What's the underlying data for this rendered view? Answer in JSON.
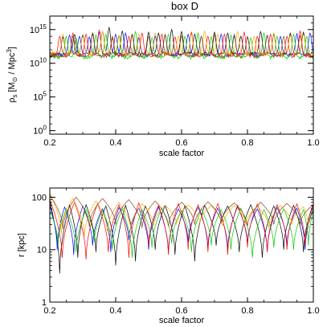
{
  "figure": {
    "title": "box D"
  },
  "colors": {
    "series": [
      "#000000",
      "#0000ff",
      "#ff0000",
      "#00cc00",
      "#ffaa00",
      "#8b4513"
    ]
  },
  "chart_data": [
    {
      "type": "line",
      "title": "box D",
      "xlabel": "scale factor",
      "ylabel_main": "ρ",
      "ylabel_sub": "s",
      "ylabel_rest": " [M",
      "ylabel_sun": "⊙",
      "ylabel_unit": " / Mpc",
      "ylabel_exp": "3",
      "ylabel_close": "]",
      "xlim": [
        0.2,
        1.0
      ],
      "ylim": [
        0.3,
        1e+17
      ],
      "yscale": "log",
      "xticks": [
        {
          "v": 0.2,
          "label": "0.2"
        },
        {
          "v": 0.4,
          "label": "0.4"
        },
        {
          "v": 0.6,
          "label": "0.6"
        },
        {
          "v": 0.8,
          "label": "0.8"
        },
        {
          "v": 1.0,
          "label": "1.0"
        }
      ],
      "yticks": [
        {
          "v": 1,
          "base": "10",
          "exp": "0"
        },
        {
          "v": 100000,
          "base": "10",
          "exp": "5"
        },
        {
          "v": 10000000000,
          "base": "10",
          "exp": "10"
        },
        {
          "v": 1000000000000000,
          "base": "10",
          "exp": "15"
        }
      ],
      "grid": false,
      "series": [
        {
          "color": "#000000",
          "base": 250000000000.0,
          "spikes": [
            [
              0.24,
              80000000000000.0
            ],
            [
              0.275,
              200000000000000.0
            ],
            [
              0.3,
              150000000000000.0
            ],
            [
              0.33,
              300000000000000.0
            ],
            [
              0.36,
              500000000000000.0
            ],
            [
              0.38,
              2000000000000000.0
            ],
            [
              0.42,
              600000000000000.0
            ],
            [
              0.45,
              200000000000000.0
            ],
            [
              0.5,
              400000000000000.0
            ],
            [
              0.53,
              300000000000000.0
            ],
            [
              0.57,
              1000000000000000.0
            ],
            [
              0.6,
              500000000000000.0
            ],
            [
              0.64,
              200000000000000.0
            ],
            [
              0.7,
              400000000000000.0
            ],
            [
              0.74,
              300000000000000.0
            ],
            [
              0.78,
              100000000000000.0
            ],
            [
              0.84,
              500000000000000.0
            ],
            [
              0.88,
              200000000000000.0
            ],
            [
              0.93,
              300000000000000.0
            ],
            [
              0.97,
              400000000000000.0
            ]
          ]
        },
        {
          "color": "#0000ff",
          "base": 200000000000.0,
          "spikes": [
            [
              0.26,
              150000000000000.0
            ],
            [
              0.29,
              100000000000000.0
            ],
            [
              0.32,
              80000000000000.0
            ],
            [
              0.35,
              400000000000000.0
            ],
            [
              0.4,
              200000000000000.0
            ],
            [
              0.43,
              300000000000000.0
            ],
            [
              0.47,
              60000000000000.0
            ],
            [
              0.52,
              100000000000000.0
            ],
            [
              0.55,
              150000000000000.0
            ],
            [
              0.62,
              200000000000000.0
            ],
            [
              0.66,
              100000000000000.0
            ],
            [
              0.72,
              200000000000000.0
            ],
            [
              0.76,
              100000000000000.0
            ],
            [
              0.8,
              70000000000000.0
            ],
            [
              0.86,
              120000000000000.0
            ],
            [
              0.9,
              100000000000000.0
            ],
            [
              0.95,
              250000000000000.0
            ],
            [
              0.99,
              300000000000000.0
            ]
          ]
        },
        {
          "color": "#ff0000",
          "base": 150000000000.0,
          "spikes": [
            [
              0.23,
              100000000000000.0
            ],
            [
              0.27,
              300000000000000.0
            ],
            [
              0.31,
              200000000000000.0
            ],
            [
              0.35,
              800000000000000.0
            ],
            [
              0.39,
              50000000000000.0
            ],
            [
              0.44,
              100000000000000.0
            ],
            [
              0.48,
              300000000000000.0
            ],
            [
              0.54,
              200000000000000.0
            ],
            [
              0.58,
              80000000000000.0
            ],
            [
              0.63,
              400000000000000.0
            ],
            [
              0.68,
              100000000000000.0
            ],
            [
              0.73,
              200000000000000.0
            ],
            [
              0.79,
              400000000000000.0
            ],
            [
              0.83,
              100000000000000.0
            ],
            [
              0.87,
              200000000000000.0
            ],
            [
              0.92,
              100000000000000.0
            ],
            [
              0.96,
              600000000000000.0
            ]
          ]
        },
        {
          "color": "#00cc00",
          "base": 80000000000.0,
          "spikes": [
            [
              0.25,
              100000000000000.0
            ],
            [
              0.28,
              50000000000000.0
            ],
            [
              0.34,
              150000000000000.0
            ],
            [
              0.37,
              200000000000000.0
            ],
            [
              0.41,
              100000000000000.0
            ],
            [
              0.46,
              500000000000000.0
            ],
            [
              0.51,
              60000000000000.0
            ],
            [
              0.56,
              200000000000000.0
            ],
            [
              0.61,
              100000000000000.0
            ],
            [
              0.65,
              300000000000000.0
            ],
            [
              0.69,
              80000000000000.0
            ],
            [
              0.75,
              150000000000000.0
            ],
            [
              0.81,
              60000000000000.0
            ],
            [
              0.85,
              300000000000000.0
            ],
            [
              0.89,
              100000000000000.0
            ],
            [
              0.94,
              200000000000000.0
            ],
            [
              0.98,
              100000000000000.0
            ]
          ]
        },
        {
          "color": "#ffaa00",
          "base": 300000000000.0,
          "spikes": [
            [
              0.24,
              200000000000000.0
            ],
            [
              0.3,
              100000000000000.0
            ],
            [
              0.36,
              500000000000000.0
            ],
            [
              0.41,
              150000000000000.0
            ],
            [
              0.47,
              200000000000000.0
            ],
            [
              0.52,
              300000000000000.0
            ],
            [
              0.59,
              100000000000000.0
            ],
            [
              0.63,
              200000000000000.0
            ],
            [
              0.67,
              600000000000000.0
            ],
            [
              0.71,
              200000000000000.0
            ],
            [
              0.77,
              500000000000000.0
            ],
            [
              0.82,
              100000000000000.0
            ],
            [
              0.88,
              300000000000000.0
            ],
            [
              0.93,
              150000000000000.0
            ],
            [
              0.97,
              200000000000000.0
            ]
          ]
        },
        {
          "color": "#8b4513",
          "base": 120000000000.0,
          "spikes": [
            [
              0.27,
              100000000000000.0
            ],
            [
              0.33,
              200000000000000.0
            ],
            [
              0.39,
              100000000000000.0
            ],
            [
              0.45,
              150000000000000.0
            ],
            [
              0.5,
              100000000000000.0
            ],
            [
              0.55,
              200000000000000.0
            ],
            [
              0.6,
              120000000000000.0
            ],
            [
              0.66,
              100000000000000.0
            ],
            [
              0.7,
              150000000000000.0
            ],
            [
              0.76,
              200000000000000.0
            ],
            [
              0.8,
              100000000000000.0
            ],
            [
              0.86,
              150000000000000.0
            ],
            [
              0.91,
              100000000000000.0
            ],
            [
              0.96,
              120000000000000.0
            ]
          ]
        }
      ]
    },
    {
      "type": "line",
      "xlabel": "scale factor",
      "ylabel": "r [kpc]",
      "xlim": [
        0.2,
        1.0
      ],
      "ylim": [
        1,
        150
      ],
      "yscale": "log",
      "xticks": [
        {
          "v": 0.2,
          "label": "0.2"
        },
        {
          "v": 0.4,
          "label": "0.4"
        },
        {
          "v": 0.6,
          "label": "0.6"
        },
        {
          "v": 0.8,
          "label": "0.8"
        },
        {
          "v": 1.0,
          "label": "1.0"
        }
      ],
      "yticks": [
        {
          "v": 1,
          "label": "1"
        },
        {
          "v": 10,
          "label": "10"
        },
        {
          "v": 100,
          "label": "100"
        }
      ],
      "grid": false,
      "series": [
        {
          "color": "#000000",
          "peaks": [
            [
              0.2,
              85
            ],
            [
              0.26,
              70
            ],
            [
              0.31,
              72
            ],
            [
              0.37,
              68
            ],
            [
              0.43,
              70
            ],
            [
              0.49,
              68
            ],
            [
              0.55,
              70
            ],
            [
              0.61,
              68
            ],
            [
              0.67,
              70
            ],
            [
              0.74,
              68
            ],
            [
              0.81,
              72
            ],
            [
              0.88,
              68
            ],
            [
              0.94,
              70
            ],
            [
              1.0,
              75
            ]
          ],
          "mins": [
            3.5,
            7,
            9,
            5,
            6,
            10,
            8,
            6,
            12,
            9,
            7,
            10,
            9
          ]
        },
        {
          "color": "#0000ff",
          "peaks": [
            [
              0.2,
              70
            ],
            [
              0.245,
              65
            ],
            [
              0.3,
              68
            ],
            [
              0.36,
              60
            ],
            [
              0.41,
              64
            ],
            [
              0.47,
              62
            ],
            [
              0.53,
              65
            ],
            [
              0.59,
              60
            ],
            [
              0.65,
              64
            ],
            [
              0.71,
              62
            ],
            [
              0.77,
              66
            ],
            [
              0.83,
              60
            ],
            [
              0.89,
              64
            ],
            [
              0.95,
              62
            ],
            [
              1.0,
              60
            ]
          ],
          "mins": [
            10,
            8,
            12,
            9,
            15,
            10,
            9,
            14,
            11,
            10,
            13,
            9,
            12,
            10
          ]
        },
        {
          "color": "#ff0000",
          "peaks": [
            [
              0.2,
              90
            ],
            [
              0.275,
              80
            ],
            [
              0.345,
              75
            ],
            [
              0.41,
              72
            ],
            [
              0.47,
              78
            ],
            [
              0.53,
              70
            ],
            [
              0.59,
              75
            ],
            [
              0.65,
              72
            ],
            [
              0.71,
              76
            ],
            [
              0.77,
              70
            ],
            [
              0.83,
              74
            ],
            [
              0.89,
              72
            ],
            [
              0.95,
              75
            ],
            [
              1.0,
              70
            ]
          ],
          "mins": [
            7,
            6.5,
            9,
            7,
            12,
            8,
            10,
            9,
            8,
            11,
            9,
            10,
            12
          ]
        },
        {
          "color": "#00cc00",
          "peaks": [
            [
              0.2,
              55
            ],
            [
              0.25,
              60
            ],
            [
              0.31,
              58
            ],
            [
              0.36,
              55
            ],
            [
              0.42,
              60
            ],
            [
              0.48,
              58
            ],
            [
              0.54,
              62
            ],
            [
              0.6,
              56
            ],
            [
              0.66,
              60
            ],
            [
              0.72,
              58
            ],
            [
              0.78,
              62
            ],
            [
              0.85,
              58
            ],
            [
              0.91,
              60
            ],
            [
              0.97,
              58
            ],
            [
              1.0,
              55
            ]
          ],
          "mins": [
            12,
            9,
            14,
            10,
            7,
            11,
            13,
            9,
            12,
            10,
            7,
            11,
            10,
            12
          ]
        },
        {
          "color": "#ffaa00",
          "peaks": [
            [
              0.2,
              120
            ],
            [
              0.27,
              95
            ],
            [
              0.34,
              85
            ],
            [
              0.41,
              80
            ],
            [
              0.48,
              75
            ],
            [
              0.55,
              70
            ],
            [
              0.62,
              72
            ],
            [
              0.69,
              68
            ],
            [
              0.76,
              70
            ],
            [
              0.83,
              66
            ],
            [
              0.9,
              70
            ],
            [
              0.97,
              66
            ],
            [
              1.0,
              64
            ]
          ],
          "mins": [
            20,
            18,
            22,
            25,
            28,
            30,
            32,
            28,
            30,
            26,
            30,
            28
          ]
        },
        {
          "color": "#8b4513",
          "peaks": [
            [
              0.2,
              110
            ],
            [
              0.28,
              100
            ],
            [
              0.36,
              95
            ],
            [
              0.44,
              90
            ],
            [
              0.52,
              85
            ],
            [
              0.6,
              80
            ],
            [
              0.68,
              82
            ],
            [
              0.76,
              78
            ],
            [
              0.84,
              80
            ],
            [
              0.92,
              76
            ],
            [
              1.0,
              72
            ]
          ],
          "mins": [
            25,
            28,
            30,
            26,
            28,
            30,
            32,
            28,
            30,
            30
          ]
        }
      ]
    }
  ]
}
